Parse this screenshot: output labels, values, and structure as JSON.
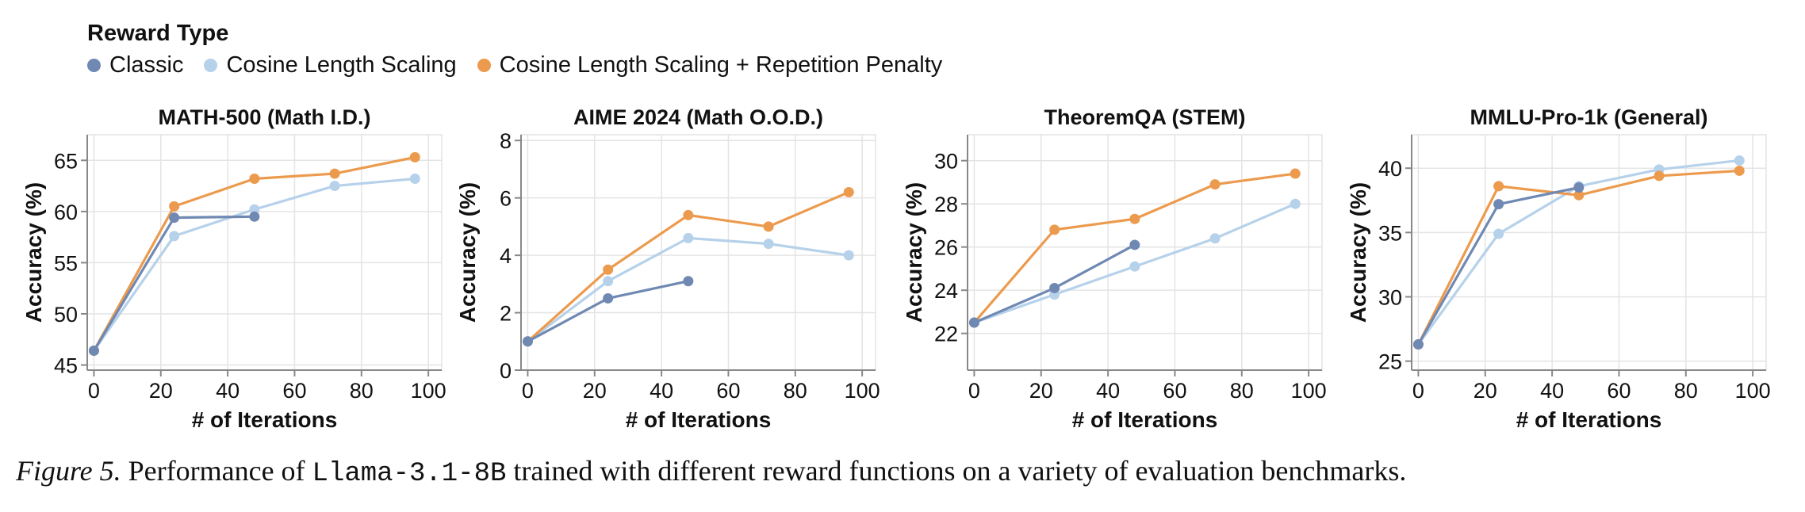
{
  "legend": {
    "title": "Reward Type",
    "items": [
      {
        "label": "Classic",
        "color": "#6f89b3"
      },
      {
        "label": "Cosine Length Scaling",
        "color": "#b6d1ea"
      },
      {
        "label": "Cosine Length Scaling + Repetition Penalty",
        "color": "#ec9a4d"
      }
    ]
  },
  "caption": {
    "label": "Figure 5.",
    "text_before": " Performance of ",
    "code": "Llama-3.1-8B",
    "text_after": " trained with different reward functions on a variety of evaluation benchmarks."
  },
  "chart_data": [
    {
      "type": "line",
      "title": "MATH-500 (Math I.D.)",
      "xlabel": "# of Iterations",
      "ylabel": "Accuracy (%)",
      "xlim": [
        -2,
        104
      ],
      "ylim": [
        44.5,
        67.5
      ],
      "xticks": [
        0,
        20,
        40,
        60,
        80,
        100
      ],
      "yticks": [
        45,
        50,
        55,
        60,
        65
      ],
      "series": [
        {
          "name": "Cosine Length Scaling",
          "color": "#b6d1ea",
          "x": [
            0,
            24,
            48,
            72,
            96
          ],
          "y": [
            46.4,
            57.6,
            60.2,
            62.5,
            63.2
          ]
        },
        {
          "name": "Cosine Length Scaling + Repetition Penalty",
          "color": "#ec9a4d",
          "x": [
            0,
            24,
            48,
            72,
            96
          ],
          "y": [
            46.4,
            60.5,
            63.2,
            63.7,
            65.3
          ]
        },
        {
          "name": "Classic",
          "color": "#6f89b3",
          "x": [
            0,
            24,
            48
          ],
          "y": [
            46.4,
            59.4,
            59.5
          ]
        }
      ]
    },
    {
      "type": "line",
      "title": "AIME 2024 (Math O.O.D.)",
      "xlabel": "# of Iterations",
      "ylabel": "Accuracy (%)",
      "xlim": [
        -2,
        104
      ],
      "ylim": [
        0,
        8.2
      ],
      "xticks": [
        0,
        20,
        40,
        60,
        80,
        100
      ],
      "yticks": [
        0,
        2,
        4,
        6,
        8
      ],
      "series": [
        {
          "name": "Cosine Length Scaling",
          "color": "#b6d1ea",
          "x": [
            0,
            24,
            48,
            72,
            96
          ],
          "y": [
            1.0,
            3.1,
            4.6,
            4.4,
            4.0
          ]
        },
        {
          "name": "Cosine Length Scaling + Repetition Penalty",
          "color": "#ec9a4d",
          "x": [
            0,
            24,
            48,
            72,
            96
          ],
          "y": [
            1.0,
            3.5,
            5.4,
            5.0,
            6.2
          ]
        },
        {
          "name": "Classic",
          "color": "#6f89b3",
          "x": [
            0,
            24,
            48
          ],
          "y": [
            1.0,
            2.5,
            3.1
          ]
        }
      ]
    },
    {
      "type": "line",
      "title": "TheoremQA (STEM)",
      "xlabel": "# of Iterations",
      "ylabel": "Accuracy (%)",
      "xlim": [
        -2,
        104
      ],
      "ylim": [
        20.3,
        31.2
      ],
      "xticks": [
        0,
        20,
        40,
        60,
        80,
        100
      ],
      "yticks": [
        22,
        24,
        26,
        28,
        30
      ],
      "series": [
        {
          "name": "Cosine Length Scaling",
          "color": "#b6d1ea",
          "x": [
            0,
            24,
            48,
            72,
            96
          ],
          "y": [
            22.5,
            23.8,
            25.1,
            26.4,
            28.0
          ]
        },
        {
          "name": "Cosine Length Scaling + Repetition Penalty",
          "color": "#ec9a4d",
          "x": [
            0,
            24,
            48,
            72,
            96
          ],
          "y": [
            22.5,
            26.8,
            27.3,
            28.9,
            29.4
          ]
        },
        {
          "name": "Classic",
          "color": "#6f89b3",
          "x": [
            0,
            24,
            48
          ],
          "y": [
            22.5,
            24.1,
            26.1
          ]
        }
      ]
    },
    {
      "type": "line",
      "title": "MMLU-Pro-1k (General)",
      "xlabel": "# of Iterations",
      "ylabel": "Accuracy (%)",
      "xlim": [
        -2,
        104
      ],
      "ylim": [
        24.3,
        42.6
      ],
      "xticks": [
        0,
        20,
        40,
        60,
        80,
        100
      ],
      "yticks": [
        25,
        30,
        35,
        40
      ],
      "series": [
        {
          "name": "Cosine Length Scaling",
          "color": "#b6d1ea",
          "x": [
            0,
            24,
            48,
            72,
            96
          ],
          "y": [
            26.3,
            34.9,
            38.6,
            39.9,
            40.6
          ]
        },
        {
          "name": "Cosine Length Scaling + Repetition Penalty",
          "color": "#ec9a4d",
          "x": [
            0,
            24,
            48,
            72,
            96
          ],
          "y": [
            26.3,
            38.6,
            37.9,
            39.4,
            39.8
          ]
        },
        {
          "name": "Classic",
          "color": "#6f89b3",
          "x": [
            0,
            24,
            48
          ],
          "y": [
            26.3,
            37.2,
            38.5
          ]
        }
      ]
    }
  ]
}
